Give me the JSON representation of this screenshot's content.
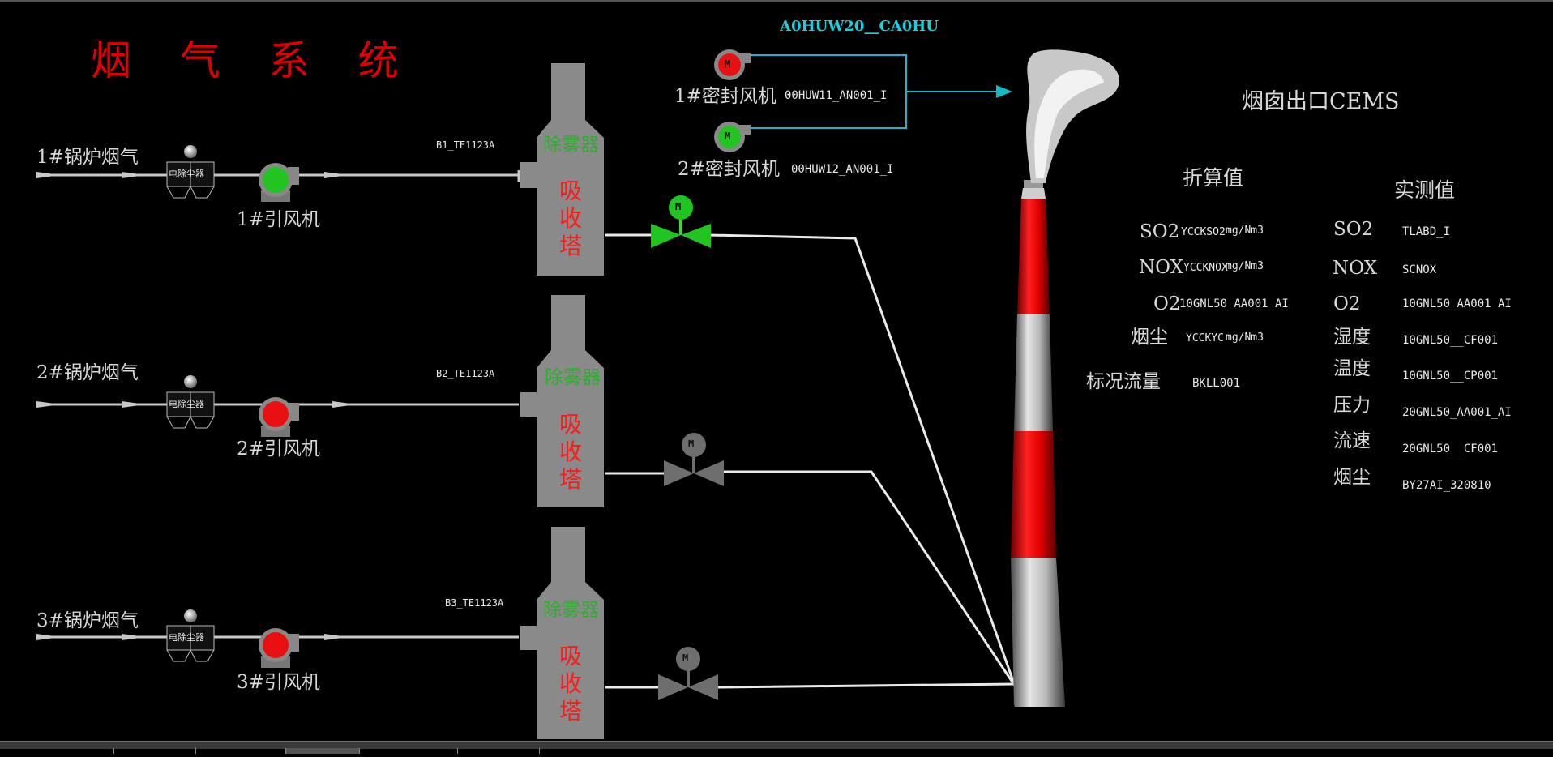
{
  "title": "烟 气 系 统",
  "top_tag": "A0HUW20__CA0HU",
  "cems_title": "烟囱出口CEMS",
  "boilers": [
    {
      "gas_label": "1#锅炉烟气",
      "esp_label": "电除尘器",
      "fan_label": "1#引风机",
      "temp_tag": "B1_TE1123A",
      "demister": "除雾器",
      "tower": [
        "吸",
        "收",
        "塔"
      ],
      "fan_status": "running",
      "valve_status": "open"
    },
    {
      "gas_label": "2#锅炉烟气",
      "esp_label": "电除尘器",
      "fan_label": "2#引风机",
      "temp_tag": "B2_TE1123A",
      "demister": "除雾器",
      "tower": [
        "吸",
        "收",
        "塔"
      ],
      "fan_status": "stopped",
      "valve_status": "closed"
    },
    {
      "gas_label": "3#锅炉烟气",
      "esp_label": "电除尘器",
      "fan_label": "3#引风机",
      "temp_tag": "B3_TE1123A",
      "demister": "除雾器",
      "tower": [
        "吸",
        "收",
        "塔"
      ],
      "fan_status": "stopped",
      "valve_status": "closed"
    }
  ],
  "seal_fans": [
    {
      "label": "1#密封风机",
      "tag": "00HUW11_AN001_I",
      "status": "stopped"
    },
    {
      "label": "2#密封风机",
      "tag": "00HUW12_AN001_I",
      "status": "running"
    }
  ],
  "motor_letter": "M",
  "converted": {
    "header": "折算值",
    "rows": [
      {
        "name": "SO2",
        "tag": "YCCKSO2",
        "unit": "mg/Nm3"
      },
      {
        "name": "NOX",
        "tag": "YCCKNOX",
        "unit": "mg/Nm3"
      },
      {
        "name": "O2",
        "tag": "10GNL50_AA001_AI",
        "unit": ""
      },
      {
        "name": "烟尘",
        "tag": "YCCKYC",
        "unit": "mg/Nm3"
      },
      {
        "name": "标况流量",
        "tag": "BKLL001",
        "unit": ""
      }
    ]
  },
  "measured": {
    "header": "实测值",
    "rows": [
      {
        "name": "SO2",
        "tag": "TLABD_I"
      },
      {
        "name": "NOX",
        "tag": "SCNOX"
      },
      {
        "name": "O2",
        "tag": "10GNL50_AA001_AI"
      },
      {
        "name": "湿度",
        "tag": "10GNL50__CF001"
      },
      {
        "name": "温度",
        "tag": "10GNL50__CP001"
      },
      {
        "name": "压力",
        "tag": "20GNL50_AA001_AI"
      },
      {
        "name": "流速",
        "tag": "20GNL50__CF001"
      },
      {
        "name": "烟尘",
        "tag": "BY27AI_320810"
      }
    ]
  },
  "colors": {
    "running": "#22c422",
    "stopped": "#e81010",
    "inactive": "#6e6e6e",
    "duct": "#c8c8c8",
    "tower": "#8a8a8a",
    "stack_red": "#d40000",
    "stack_grey": "#a0a0a0",
    "seal_line": "#14b8c8"
  }
}
